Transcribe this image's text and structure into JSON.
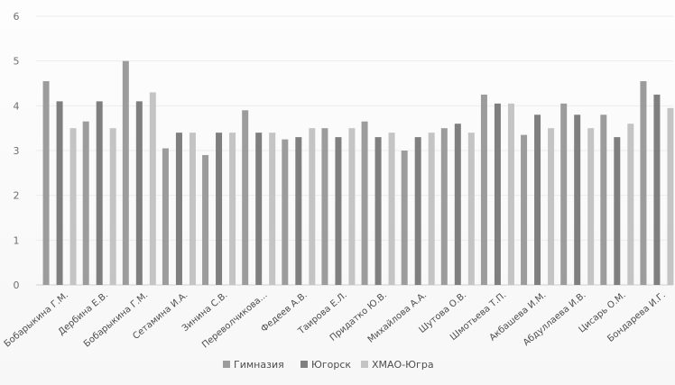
{
  "chart_data": {
    "type": "bar",
    "title": "",
    "xlabel": "",
    "ylabel": "",
    "ylim": [
      0,
      6
    ],
    "yticks": [
      0,
      1,
      2,
      3,
      4,
      5,
      6
    ],
    "grid": true,
    "legend_position": "bottom",
    "categories": [
      "Бобарыкина Г.М.",
      "Дербина Е.В.",
      "Бобарыкина Г.М.",
      "Сетамина И.А.",
      "Зинина С.В.",
      "Переволчикова...",
      "Федеев А.В.",
      "Таирова Е.Л.",
      "Придатко Ю.В.",
      "Михайлова А.А.",
      "Шутова О.В.",
      "Шмотьева Т.П.",
      "Акбашева И.М.",
      "Абдуллаева И.В.",
      "Цисарь О.М.",
      "Бондарева И.Г."
    ],
    "series": [
      {
        "name": "Гимназия",
        "color": "#9c9c9c",
        "values": [
          4.55,
          3.65,
          5.0,
          3.05,
          2.9,
          3.9,
          3.25,
          3.5,
          3.65,
          3.0,
          3.5,
          4.25,
          3.35,
          4.05,
          3.8,
          4.55
        ]
      },
      {
        "name": "Югорск",
        "color": "#7f7f7f",
        "values": [
          4.1,
          4.1,
          4.1,
          3.4,
          3.4,
          3.4,
          3.3,
          3.3,
          3.3,
          3.3,
          3.6,
          4.05,
          3.8,
          3.8,
          3.3,
          4.25
        ]
      },
      {
        "name": "ХМАО-Югра",
        "color": "#c4c4c4",
        "values": [
          3.5,
          3.5,
          4.3,
          3.4,
          3.4,
          3.4,
          3.5,
          3.5,
          3.4,
          3.4,
          3.4,
          4.05,
          3.5,
          3.5,
          3.6,
          3.95
        ]
      }
    ]
  }
}
